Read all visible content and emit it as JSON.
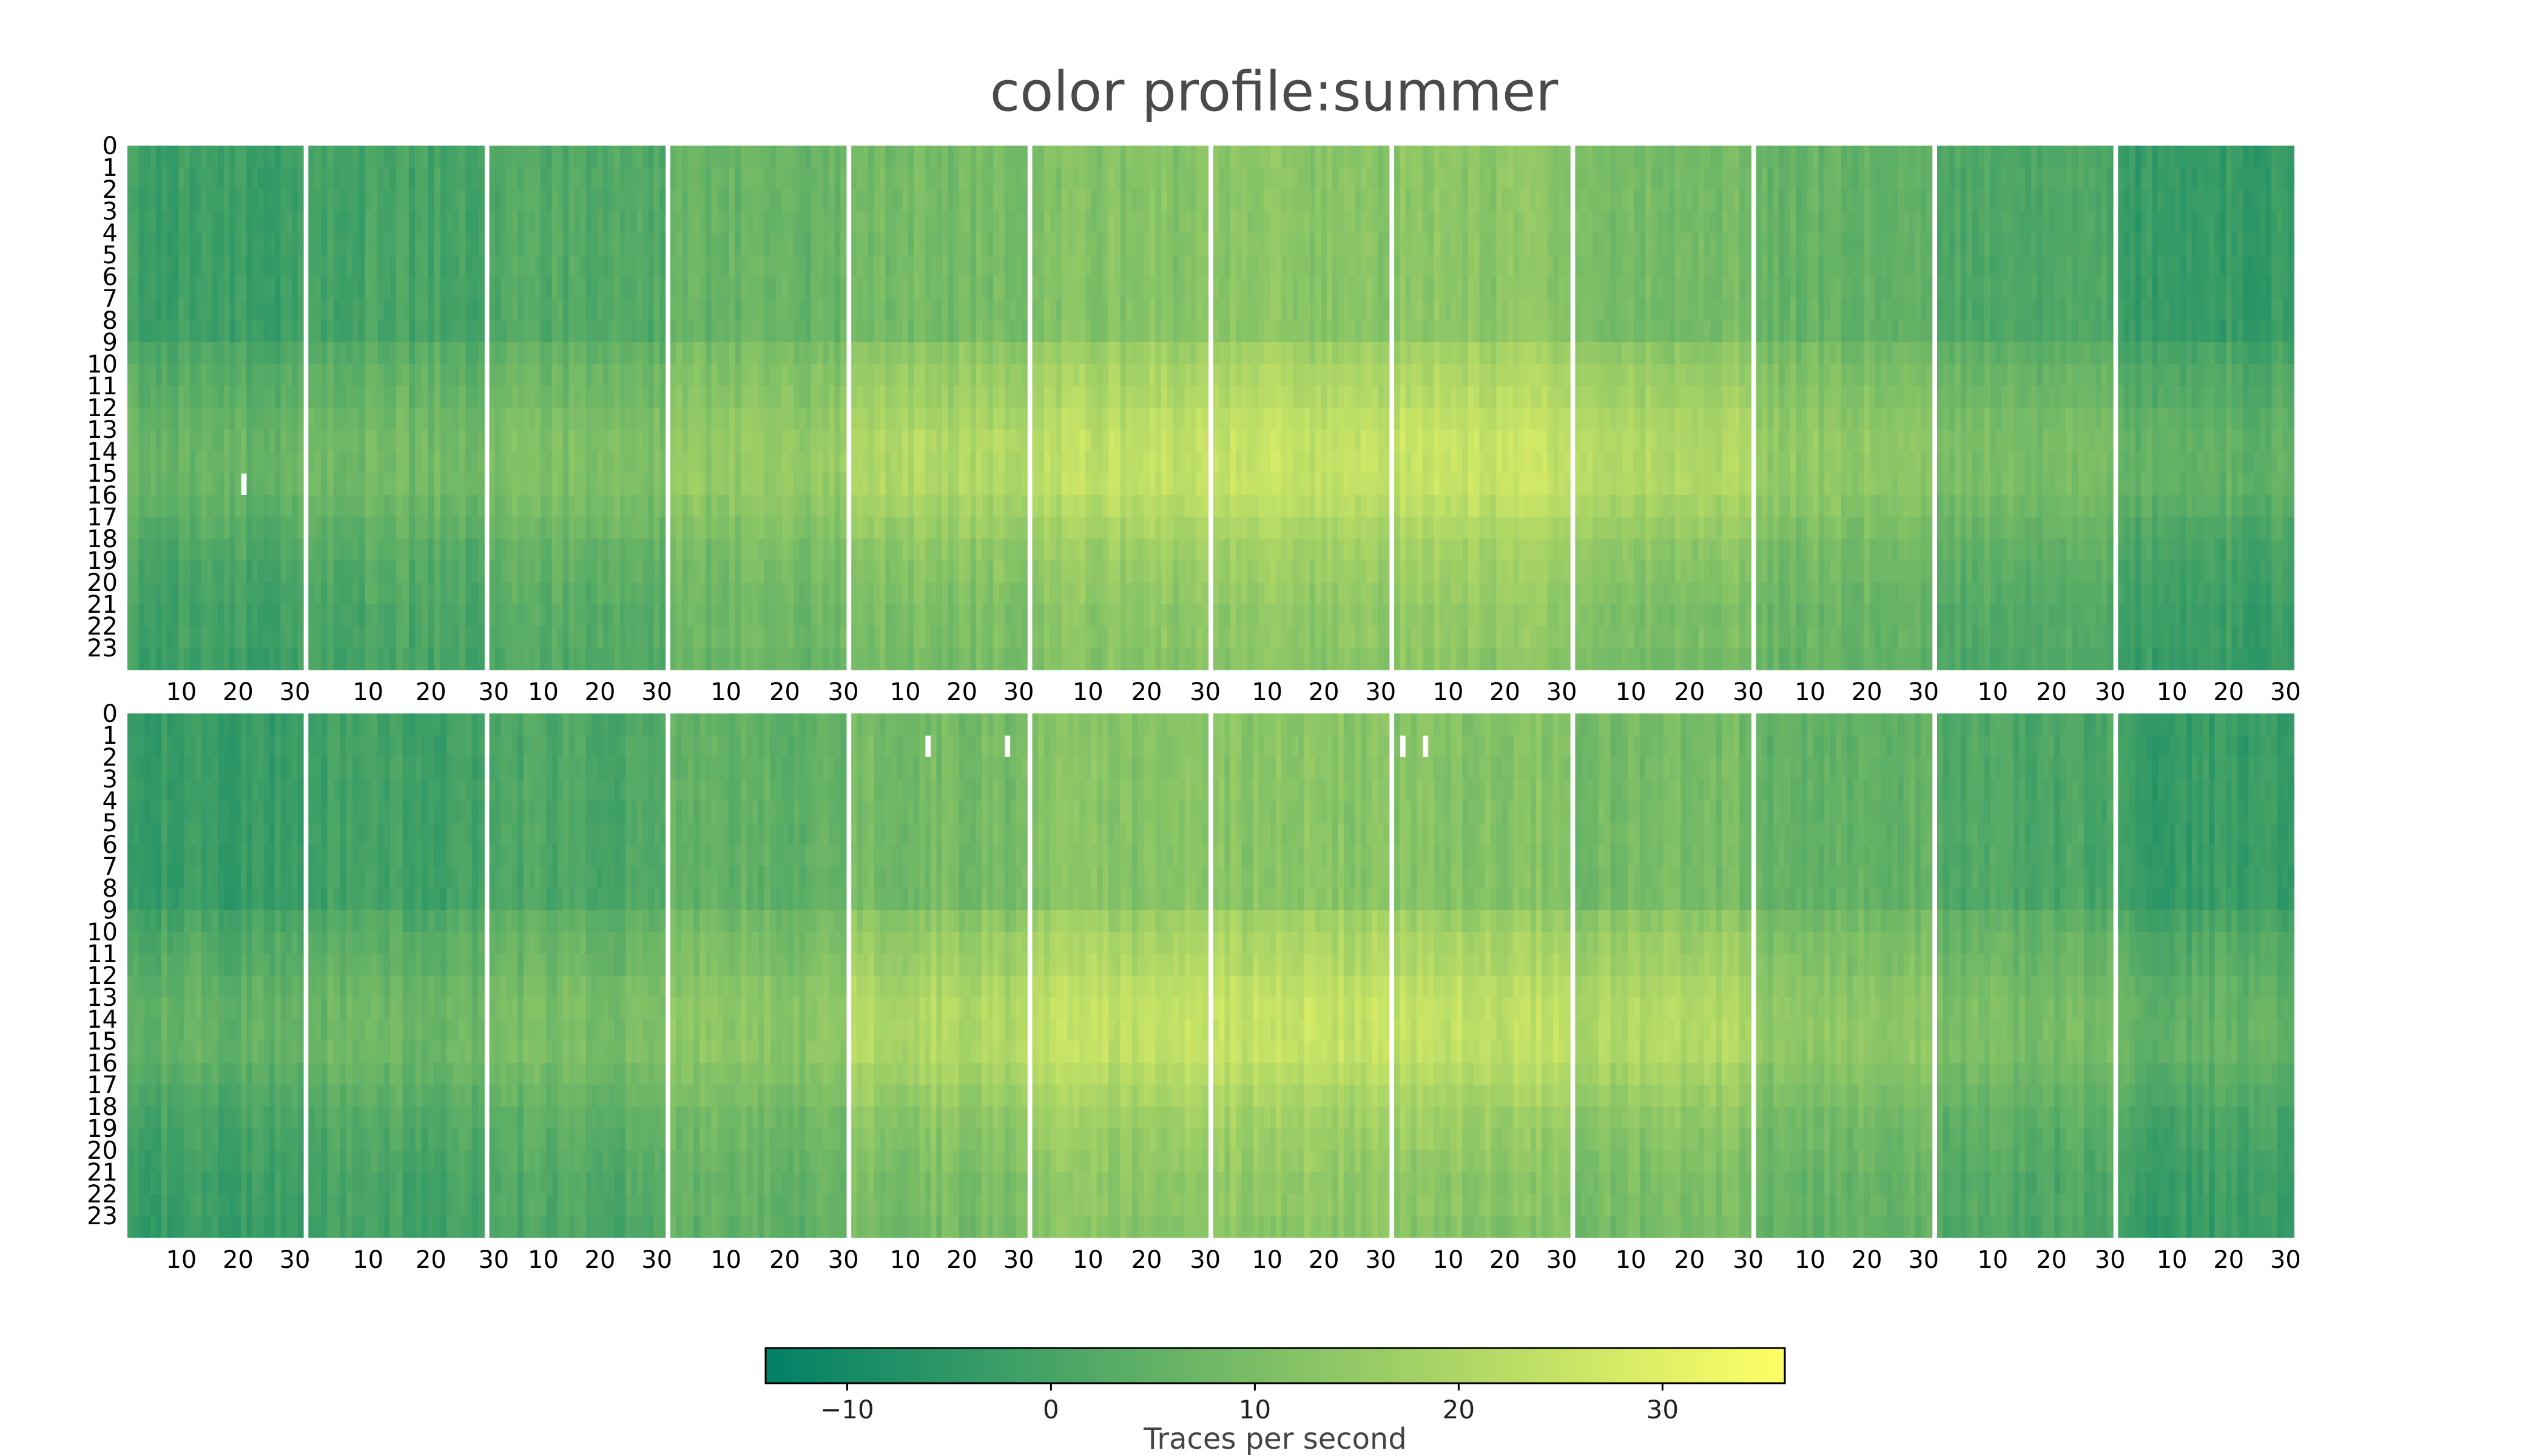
{
  "chart_data": {
    "type": "heatmap",
    "title": "color profile:summer",
    "colormap": "summer",
    "colorbar": {
      "label": "Traces per second",
      "range": [
        -14,
        36
      ],
      "ticks": [
        -10,
        0,
        10,
        20,
        30
      ],
      "tick_labels": [
        "−10",
        "0",
        "10",
        "20",
        "30"
      ],
      "color_low": "#008066",
      "color_high": "#ffff66"
    },
    "grid": "off",
    "layout": "2 rows x 12 panels; each panel y = hour of day (0-23), x = day of month (1-31)",
    "y_tick_labels": [
      "0",
      "1",
      "2",
      "3",
      "4",
      "5",
      "6",
      "7",
      "8",
      "9",
      "10",
      "11",
      "12",
      "13",
      "14",
      "15",
      "16",
      "17",
      "18",
      "19",
      "20",
      "21",
      "22",
      "23"
    ],
    "x_tick_labels": [
      "10",
      "20",
      "30"
    ],
    "days_per_month": [
      31,
      28,
      31,
      30,
      31,
      30,
      31,
      31,
      30,
      31,
      30,
      31
    ],
    "panels": [
      {
        "row": 0,
        "month": 1,
        "base": -2
      },
      {
        "row": 0,
        "month": 2,
        "base": 0
      },
      {
        "row": 0,
        "month": 3,
        "base": 2
      },
      {
        "row": 0,
        "month": 4,
        "base": 6
      },
      {
        "row": 0,
        "month": 5,
        "base": 9
      },
      {
        "row": 0,
        "month": 6,
        "base": 12
      },
      {
        "row": 0,
        "month": 7,
        "base": 13
      },
      {
        "row": 0,
        "month": 8,
        "base": 13
      },
      {
        "row": 0,
        "month": 9,
        "base": 9
      },
      {
        "row": 0,
        "month": 10,
        "base": 6
      },
      {
        "row": 0,
        "month": 11,
        "base": 1
      },
      {
        "row": 0,
        "month": 12,
        "base": -3
      },
      {
        "row": 1,
        "month": 1,
        "base": -3
      },
      {
        "row": 1,
        "month": 2,
        "base": -1
      },
      {
        "row": 1,
        "month": 3,
        "base": 1
      },
      {
        "row": 1,
        "month": 4,
        "base": 5
      },
      {
        "row": 1,
        "month": 5,
        "base": 9
      },
      {
        "row": 1,
        "month": 6,
        "base": 12
      },
      {
        "row": 1,
        "month": 7,
        "base": 13
      },
      {
        "row": 1,
        "month": 8,
        "base": 12
      },
      {
        "row": 1,
        "month": 9,
        "base": 9
      },
      {
        "row": 1,
        "month": 10,
        "base": 5
      },
      {
        "row": 1,
        "month": 11,
        "base": 1
      },
      {
        "row": 1,
        "month": 12,
        "base": -3
      }
    ],
    "diurnal_profile": [
      0,
      0,
      0,
      0,
      0,
      0,
      0,
      0,
      0,
      4,
      6,
      7,
      9,
      10,
      10,
      10,
      8,
      6,
      4,
      3,
      2,
      1,
      1,
      0
    ],
    "missing_cells": [
      {
        "row": 0,
        "month": 1,
        "day": 21,
        "hour": 15
      },
      {
        "row": 1,
        "month": 5,
        "day": 14,
        "hour": 1
      },
      {
        "row": 1,
        "month": 5,
        "day": 28,
        "hour": 1
      },
      {
        "row": 1,
        "month": 8,
        "day": 2,
        "hour": 1
      },
      {
        "row": 1,
        "month": 8,
        "day": 6,
        "hour": 1
      }
    ]
  }
}
